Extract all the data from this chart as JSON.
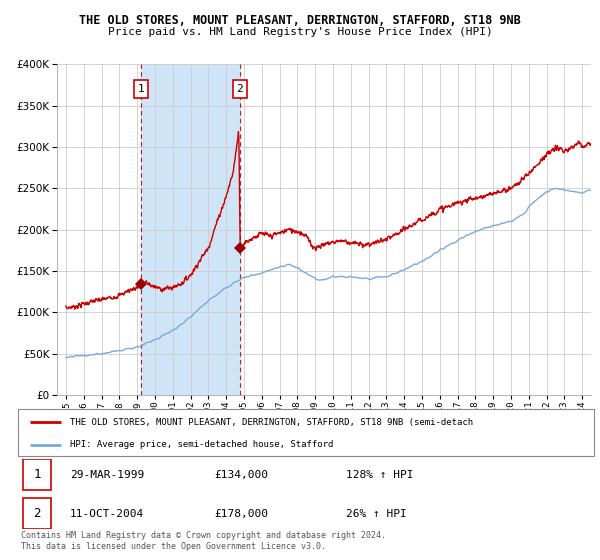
{
  "title": "THE OLD STORES, MOUNT PLEASANT, DERRINGTON, STAFFORD, ST18 9NB",
  "subtitle": "Price paid vs. HM Land Registry's House Price Index (HPI)",
  "legend_line1": "THE OLD STORES, MOUNT PLEASANT, DERRINGTON, STAFFORD, ST18 9NB (semi-detach",
  "legend_line2": "HPI: Average price, semi-detached house, Stafford",
  "table_rows": [
    {
      "num": "1",
      "date": "29-MAR-1999",
      "price": "£134,000",
      "hpi": "128% ↑ HPI"
    },
    {
      "num": "2",
      "date": "11-OCT-2004",
      "price": "£178,000",
      "hpi": "26% ↑ HPI"
    }
  ],
  "footnote1": "Contains HM Land Registry data © Crown copyright and database right 2024.",
  "footnote2": "This data is licensed under the Open Government Licence v3.0.",
  "sale1_year": 1999.22,
  "sale1_price": 134000,
  "sale2_year": 2004.78,
  "sale2_price": 178000,
  "red_line_color": "#cc0000",
  "blue_line_color": "#7aaadd",
  "vline_color": "#cc0000",
  "marker_color": "#990000",
  "shade_color": "#d0e4f7",
  "ylim": [
    0,
    400000
  ],
  "xlim": [
    1994.5,
    2024.5
  ],
  "yticks": [
    0,
    50000,
    100000,
    150000,
    200000,
    250000,
    300000,
    350000,
    400000
  ],
  "xticks": [
    1995,
    1996,
    1997,
    1998,
    1999,
    2000,
    2001,
    2002,
    2003,
    2004,
    2005,
    2006,
    2007,
    2008,
    2009,
    2010,
    2011,
    2012,
    2013,
    2014,
    2015,
    2016,
    2017,
    2018,
    2019,
    2020,
    2021,
    2022,
    2023,
    2024
  ]
}
